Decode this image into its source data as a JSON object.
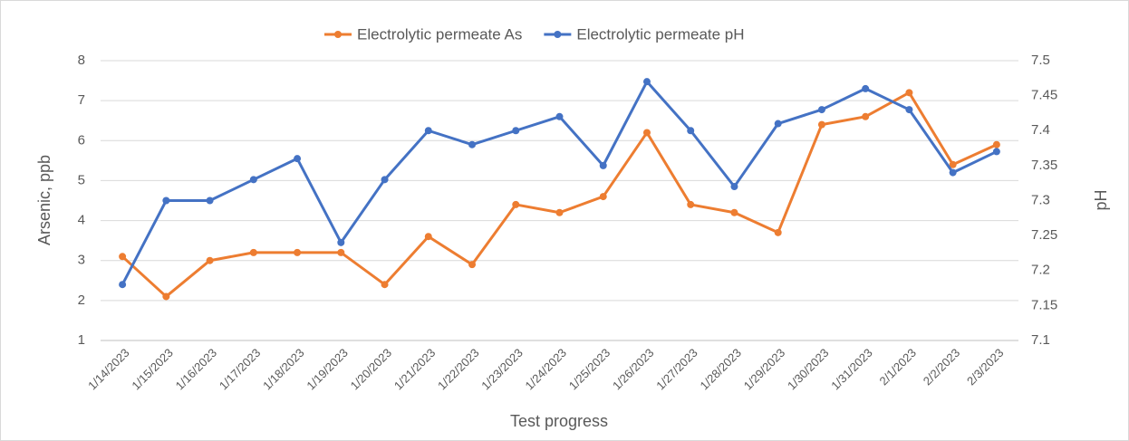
{
  "chart_data": {
    "type": "line",
    "categories": [
      "1/14/2023",
      "1/15/2023",
      "1/16/2023",
      "1/17/2023",
      "1/18/2023",
      "1/19/2023",
      "1/20/2023",
      "1/21/2023",
      "1/22/2023",
      "1/23/2023",
      "1/24/2023",
      "1/25/2023",
      "1/26/2023",
      "1/27/2023",
      "1/28/2023",
      "1/29/2023",
      "1/30/2023",
      "1/31/2023",
      "2/1/2023",
      "2/2/2023",
      "2/3/2023"
    ],
    "series": [
      {
        "name": "Electrolytic permeate As",
        "color": "#ed7d31",
        "axis": "y",
        "values": [
          3.1,
          2.1,
          3.0,
          3.2,
          3.2,
          3.2,
          2.4,
          3.6,
          2.9,
          4.4,
          4.2,
          4.6,
          6.2,
          4.4,
          4.2,
          3.7,
          6.4,
          6.6,
          7.2,
          5.4,
          5.9
        ]
      },
      {
        "name": "Electrolytic permeate pH",
        "color": "#4472c4",
        "axis": "y2",
        "values": [
          7.18,
          7.3,
          7.3,
          7.33,
          7.36,
          7.24,
          7.33,
          7.4,
          7.38,
          7.4,
          7.42,
          7.35,
          7.47,
          7.4,
          7.32,
          7.41,
          7.43,
          7.46,
          7.43,
          7.34,
          7.37
        ]
      }
    ],
    "xlabel": "Test progress",
    "ylabel": "Arsenic, ppb",
    "y2label": "pH",
    "ylim": [
      1,
      8
    ],
    "yticks": [
      1,
      2,
      3,
      4,
      5,
      6,
      7,
      8
    ],
    "y2lim": [
      7.1,
      7.5
    ],
    "y2ticks": [
      7.1,
      7.15,
      7.2,
      7.25,
      7.3,
      7.35,
      7.4,
      7.45,
      7.5
    ],
    "grid": true,
    "legend": "top"
  }
}
